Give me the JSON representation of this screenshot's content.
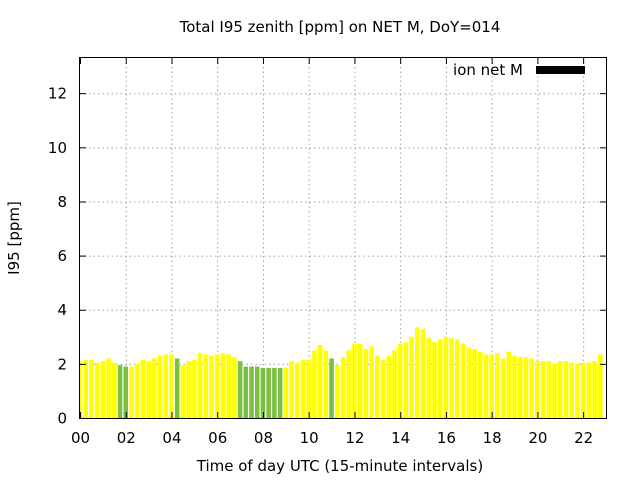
{
  "chart_data": {
    "type": "bar",
    "title": "Total I95 zenith [ppm] on NET M, DoY=014",
    "xlabel": "Time of day UTC (15-minute intervals)",
    "ylabel": "I95 [ppm]",
    "xlim": [
      0,
      23
    ],
    "ylim": [
      0,
      13.3
    ],
    "x_ticks": [
      0,
      2,
      4,
      6,
      8,
      10,
      12,
      14,
      16,
      18,
      20,
      22
    ],
    "x_tick_labels": [
      "00",
      "02",
      "04",
      "06",
      "08",
      "10",
      "12",
      "14",
      "16",
      "18",
      "20",
      "22"
    ],
    "y_ticks": [
      0,
      2,
      4,
      6,
      8,
      10,
      12
    ],
    "y_tick_labels": [
      "0",
      "2",
      "4",
      "6",
      "8",
      "10",
      "12"
    ],
    "grid": true,
    "legend": {
      "label": "ion net M",
      "color": "#000000",
      "position": "top-right"
    },
    "colors": {
      "normal": "#ffff00",
      "low": "#7cc043"
    },
    "bar_interval_hours": 0.25,
    "series": [
      {
        "name": "I95",
        "x": [
          0,
          0.25,
          0.5,
          0.75,
          1,
          1.25,
          1.5,
          1.75,
          2,
          2.25,
          2.5,
          2.75,
          3,
          3.25,
          3.5,
          3.75,
          4,
          4.25,
          4.5,
          4.75,
          5,
          5.25,
          5.5,
          5.75,
          6,
          6.25,
          6.5,
          6.75,
          7,
          7.25,
          7.5,
          7.75,
          8,
          8.25,
          8.5,
          8.75,
          9,
          9.25,
          9.5,
          9.75,
          10,
          10.25,
          10.5,
          10.75,
          11,
          11.25,
          11.5,
          11.75,
          12,
          12.25,
          12.5,
          12.75,
          13,
          13.25,
          13.5,
          13.75,
          14,
          14.25,
          14.5,
          14.75,
          15,
          15.25,
          15.5,
          15.75,
          16,
          16.25,
          16.5,
          16.75,
          17,
          17.25,
          17.5,
          17.75,
          18,
          18.25,
          18.5,
          18.75,
          19,
          19.25,
          19.5,
          19.75,
          20,
          20.25,
          20.5,
          20.75,
          21,
          21.25,
          21.5,
          21.75,
          22,
          22.25,
          22.5,
          22.75
        ],
        "values": [
          2.1,
          2.15,
          2.15,
          2.05,
          2.1,
          2.2,
          2.05,
          1.95,
          1.9,
          1.9,
          2.0,
          2.15,
          2.1,
          2.2,
          2.3,
          2.35,
          2.35,
          2.2,
          1.95,
          2.1,
          2.15,
          2.4,
          2.35,
          2.3,
          2.35,
          2.4,
          2.35,
          2.25,
          2.1,
          1.9,
          1.9,
          1.9,
          1.85,
          1.85,
          1.85,
          1.85,
          1.85,
          2.1,
          2.05,
          2.15,
          2.15,
          2.5,
          2.7,
          2.5,
          2.2,
          1.95,
          2.25,
          2.5,
          2.75,
          2.75,
          2.55,
          2.65,
          2.3,
          2.15,
          2.3,
          2.5,
          2.75,
          2.8,
          3.0,
          3.35,
          3.3,
          2.95,
          2.8,
          2.9,
          3.0,
          2.95,
          2.9,
          2.75,
          2.6,
          2.55,
          2.45,
          2.35,
          2.35,
          2.4,
          2.2,
          2.45,
          2.3,
          2.25,
          2.25,
          2.2,
          2.1,
          2.1,
          2.1,
          2.0,
          2.1,
          2.1,
          2.05,
          2.0,
          2.05,
          2.05,
          2.1,
          2.35
        ],
        "flag": [
          "n",
          "n",
          "n",
          "n",
          "n",
          "n",
          "n",
          "g",
          "g",
          "n",
          "n",
          "n",
          "n",
          "n",
          "n",
          "n",
          "n",
          "g",
          "n",
          "n",
          "n",
          "n",
          "n",
          "n",
          "n",
          "n",
          "n",
          "n",
          "g",
          "g",
          "g",
          "g",
          "g",
          "g",
          "g",
          "g",
          "n",
          "n",
          "n",
          "n",
          "n",
          "n",
          "n",
          "n",
          "g",
          "n",
          "n",
          "n",
          "n",
          "n",
          "n",
          "n",
          "n",
          "n",
          "n",
          "n",
          "n",
          "n",
          "n",
          "n",
          "n",
          "n",
          "n",
          "n",
          "n",
          "n",
          "n",
          "n",
          "n",
          "n",
          "n",
          "n",
          "n",
          "n",
          "n",
          "n",
          "n",
          "n",
          "n",
          "n",
          "n",
          "n",
          "n",
          "n",
          "n",
          "n",
          "n",
          "n",
          "n",
          "n",
          "n",
          "n"
        ]
      }
    ]
  }
}
